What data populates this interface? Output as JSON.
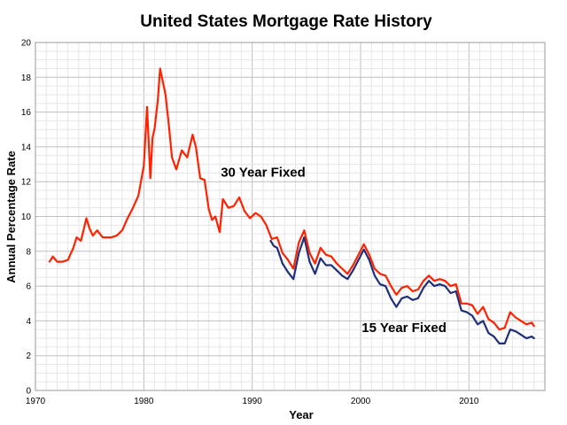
{
  "chart_data": {
    "type": "line",
    "title": "United States Mortgage Rate History",
    "xlabel": "Year",
    "ylabel": "Annual Percentage Rate",
    "xlim": [
      1970,
      2017
    ],
    "ylim": [
      0,
      20
    ],
    "x_ticks": [
      1970,
      1980,
      1990,
      2000,
      2010
    ],
    "y_ticks": [
      0,
      2,
      4,
      6,
      8,
      10,
      12,
      14,
      16,
      18,
      20
    ],
    "grid": true,
    "minor_grid": true,
    "series": [
      {
        "name": "30 Year Fixed",
        "color": "#ff2200",
        "x": [
          1971.3,
          1971.6,
          1972.0,
          1972.5,
          1973.0,
          1973.5,
          1973.8,
          1974.2,
          1974.7,
          1975.0,
          1975.3,
          1975.7,
          1976.2,
          1976.7,
          1977.0,
          1977.5,
          1978.0,
          1978.5,
          1979.0,
          1979.5,
          1980.0,
          1980.3,
          1980.6,
          1980.8,
          1981.0,
          1981.3,
          1981.5,
          1981.8,
          1982.0,
          1982.3,
          1982.6,
          1983.0,
          1983.5,
          1984.0,
          1984.5,
          1984.8,
          1985.2,
          1985.6,
          1986.0,
          1986.3,
          1986.6,
          1987.0,
          1987.3,
          1987.8,
          1988.3,
          1988.8,
          1989.3,
          1989.8,
          1990.3,
          1990.8,
          1991.3,
          1991.8,
          1992.3,
          1992.8,
          1993.3,
          1993.8,
          1994.3,
          1994.8,
          1995.3,
          1995.8,
          1996.3,
          1996.8,
          1997.3,
          1997.8,
          1998.3,
          1998.8,
          1999.3,
          1999.8,
          2000.3,
          2000.8,
          2001.3,
          2001.8,
          2002.3,
          2002.8,
          2003.3,
          2003.8,
          2004.3,
          2004.8,
          2005.3,
          2005.8,
          2006.3,
          2006.8,
          2007.3,
          2007.8,
          2008.3,
          2008.8,
          2009.3,
          2009.8,
          2010.3,
          2010.8,
          2011.3,
          2011.8,
          2012.3,
          2012.8,
          2013.3,
          2013.8,
          2014.3,
          2014.8,
          2015.3,
          2015.8,
          2016.0
        ],
        "values": [
          7.4,
          7.7,
          7.4,
          7.4,
          7.5,
          8.2,
          8.8,
          8.6,
          9.9,
          9.3,
          8.9,
          9.2,
          8.8,
          8.8,
          8.8,
          8.9,
          9.2,
          9.9,
          10.5,
          11.2,
          12.9,
          16.3,
          12.2,
          14.5,
          15.1,
          16.7,
          18.5,
          17.6,
          17.0,
          15.3,
          13.4,
          12.7,
          13.8,
          13.4,
          14.7,
          14.0,
          12.2,
          12.1,
          10.4,
          9.8,
          10.0,
          9.1,
          11.0,
          10.5,
          10.6,
          11.1,
          10.3,
          9.9,
          10.2,
          10.0,
          9.5,
          8.7,
          8.8,
          7.9,
          7.5,
          7.0,
          8.5,
          9.2,
          7.9,
          7.3,
          8.2,
          7.8,
          7.7,
          7.3,
          7.0,
          6.7,
          7.2,
          7.8,
          8.4,
          7.8,
          7.0,
          6.7,
          6.6,
          6.0,
          5.5,
          5.9,
          6.0,
          5.7,
          5.8,
          6.3,
          6.6,
          6.3,
          6.4,
          6.3,
          6.0,
          6.1,
          5.0,
          5.0,
          4.9,
          4.4,
          4.8,
          4.1,
          3.9,
          3.5,
          3.6,
          4.5,
          4.2,
          4.0,
          3.8,
          3.9,
          3.7
        ]
      },
      {
        "name": "15 Year Fixed",
        "color": "#1f2f7a",
        "x": [
          1991.7,
          1992.0,
          1992.3,
          1992.8,
          1993.3,
          1993.8,
          1994.3,
          1994.8,
          1995.3,
          1995.8,
          1996.3,
          1996.8,
          1997.3,
          1997.8,
          1998.3,
          1998.8,
          1999.3,
          1999.8,
          2000.3,
          2000.8,
          2001.3,
          2001.8,
          2002.3,
          2002.8,
          2003.3,
          2003.8,
          2004.3,
          2004.8,
          2005.3,
          2005.8,
          2006.3,
          2006.8,
          2007.3,
          2007.8,
          2008.3,
          2008.8,
          2009.3,
          2009.8,
          2010.3,
          2010.8,
          2011.3,
          2011.8,
          2012.3,
          2012.8,
          2013.3,
          2013.8,
          2014.3,
          2014.8,
          2015.3,
          2015.8,
          2016.0
        ],
        "values": [
          8.6,
          8.3,
          8.2,
          7.3,
          6.8,
          6.4,
          7.9,
          8.8,
          7.4,
          6.7,
          7.6,
          7.2,
          7.2,
          6.9,
          6.6,
          6.4,
          6.9,
          7.5,
          8.1,
          7.5,
          6.6,
          6.1,
          6.0,
          5.3,
          4.8,
          5.3,
          5.4,
          5.2,
          5.3,
          5.9,
          6.3,
          6.0,
          6.1,
          6.0,
          5.6,
          5.7,
          4.6,
          4.5,
          4.3,
          3.8,
          4.0,
          3.3,
          3.1,
          2.7,
          2.7,
          3.5,
          3.4,
          3.2,
          3.0,
          3.1,
          3.0
        ]
      }
    ],
    "annotations": [
      {
        "text": "30 Year Fixed",
        "x": 1987.1,
        "y": 12.3
      },
      {
        "text": "15 Year Fixed",
        "x": 2000.1,
        "y": 3.35
      }
    ]
  }
}
